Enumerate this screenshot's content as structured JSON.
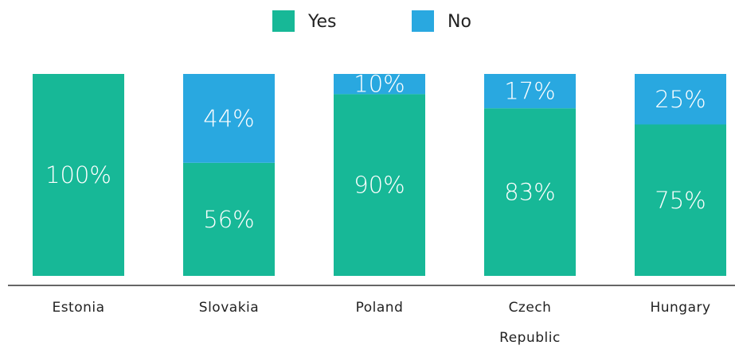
{
  "chart_data": {
    "type": "stacked_bar",
    "categories": [
      "Estonia",
      "Slovakia",
      "Poland",
      "Czech Republic",
      "Hungary"
    ],
    "series": [
      {
        "name": "Yes",
        "color": "#17b897",
        "values": [
          100,
          56,
          90,
          83,
          75
        ],
        "value_labels": [
          "100%",
          "56%",
          "90%",
          "83%",
          "75%"
        ]
      },
      {
        "name": "No",
        "color": "#29a8e0",
        "values": [
          0,
          44,
          10,
          17,
          25
        ],
        "value_labels": [
          null,
          "44%",
          "10%",
          "17%",
          "25%"
        ]
      }
    ],
    "ylim": [
      0,
      100
    ]
  }
}
